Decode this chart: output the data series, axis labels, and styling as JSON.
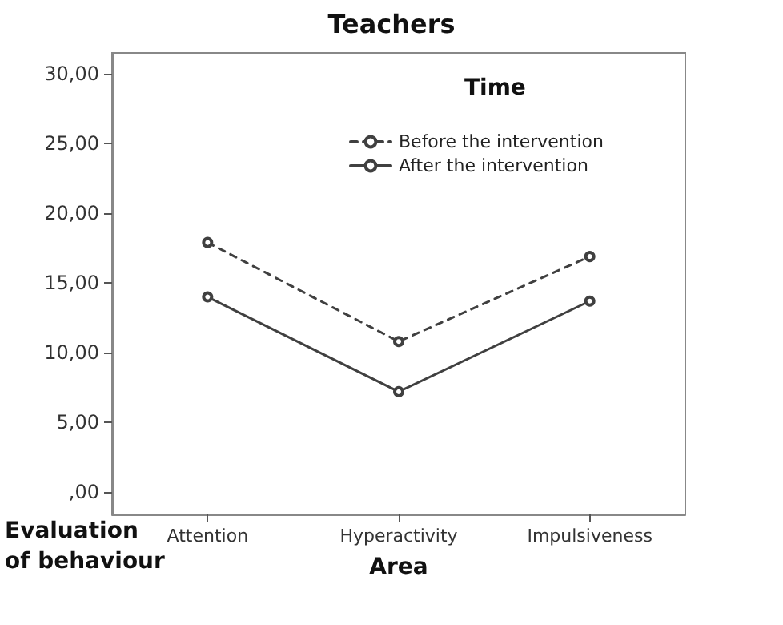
{
  "chart_data": {
    "type": "line",
    "title": "Teachers",
    "xlabel": "Area",
    "ylabel": "Evaluation of behaviour",
    "legend_title": "Time",
    "categories": [
      "Attention",
      "Hyperactivity",
      "Impulsiveness"
    ],
    "series": [
      {
        "name": "Before the intervention",
        "color": "#404040",
        "line_style": "dashed",
        "values": [
          17.9,
          10.8,
          16.9
        ]
      },
      {
        "name": "After the intervention",
        "color": "#404040",
        "line_style": "solid",
        "values": [
          14.0,
          7.2,
          13.7
        ]
      }
    ],
    "ylim": [
      -1.6,
      31.5
    ],
    "yticks": [
      {
        "value": 0,
        "label": ",00"
      },
      {
        "value": 5,
        "label": "5,00"
      },
      {
        "value": 10,
        "label": "10,00"
      },
      {
        "value": 15,
        "label": "15,00"
      },
      {
        "value": 20,
        "label": "20,00"
      },
      {
        "value": 25,
        "label": "25,00"
      },
      {
        "value": 30,
        "label": "30,00"
      }
    ],
    "grid": false,
    "legend": "top right",
    "marker": "circle"
  }
}
